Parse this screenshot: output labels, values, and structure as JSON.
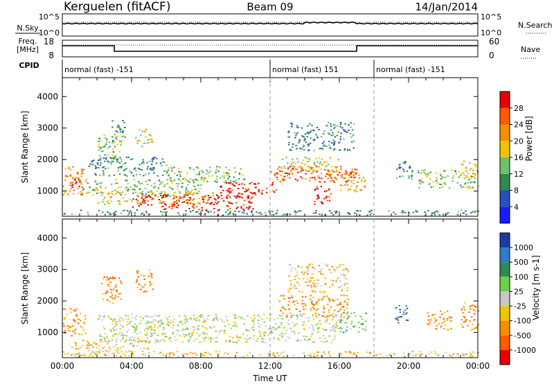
{
  "header": {
    "title": "Kerguelen (fitACF)",
    "beam": "Beam 09",
    "date": "14/Jan/2014"
  },
  "nsky_panel": {
    "left_label": "N.Sky",
    "right_label": "N.Search",
    "left_ticks": [
      "10^5",
      "10^0"
    ],
    "right_ticks": [
      "10^5",
      "10^0"
    ]
  },
  "freq_panel": {
    "left_label_1": "Freq.",
    "left_label_2": "[MHz]",
    "right_label": "Nave",
    "left_ticks": [
      "18",
      "8"
    ],
    "right_ticks": [
      "60",
      "0"
    ],
    "freq_steps": [
      {
        "from": 0,
        "to": 3,
        "level": "high"
      },
      {
        "from": 3,
        "to": 17,
        "level": "low"
      },
      {
        "from": 17,
        "to": 24,
        "level": "high"
      }
    ]
  },
  "cpid": {
    "label": "CPID",
    "segments": [
      {
        "start_hour": 0,
        "text": "normal (fast) -151"
      },
      {
        "start_hour": 12,
        "text": "normal (fast) 151"
      },
      {
        "start_hour": 18,
        "text": "normal (fast) -151"
      }
    ]
  },
  "chart_data": [
    {
      "type": "heatmap",
      "panel": "power",
      "ylabel": "Slant Range [km]",
      "ylim": [
        200,
        4600
      ],
      "yticks": [
        1000,
        2000,
        3000,
        4000
      ],
      "xlim": [
        0,
        24
      ],
      "colorbar_label": "Power [dB]",
      "colorbar_ticks": [
        4,
        8,
        12,
        16,
        20,
        24,
        28
      ],
      "colorbar_colors": [
        "#1a1aff",
        "#2a4fb8",
        "#2e8a52",
        "#6fbf6f",
        "#f2c500",
        "#f58f00",
        "#ff5a00",
        "#e60000"
      ],
      "regions": [
        {
          "t": [
            0.0,
            12.0
          ],
          "r": [
            250,
            420
          ],
          "level": 2
        },
        {
          "t": [
            12.0,
            24.0
          ],
          "r": [
            250,
            420
          ],
          "level": 2
        },
        {
          "t": [
            0.0,
            1.2
          ],
          "r": [
            900,
            1800
          ],
          "level": 5
        },
        {
          "t": [
            0.4,
            1.0
          ],
          "r": [
            1100,
            1500
          ],
          "level": 7
        },
        {
          "t": [
            2.0,
            3.5
          ],
          "r": [
            1900,
            2800
          ],
          "level": 3
        },
        {
          "t": [
            2.8,
            3.6
          ],
          "r": [
            2600,
            3300
          ],
          "level": 2
        },
        {
          "t": [
            4.2,
            5.2
          ],
          "r": [
            2400,
            3000
          ],
          "level": 4
        },
        {
          "t": [
            1.5,
            6.0
          ],
          "r": [
            1500,
            2100
          ],
          "level": 2
        },
        {
          "t": [
            1.0,
            8.0
          ],
          "r": [
            900,
            1400
          ],
          "level": 3
        },
        {
          "t": [
            2.0,
            9.0
          ],
          "r": [
            600,
            1000
          ],
          "level": 4
        },
        {
          "t": [
            4.0,
            11.0
          ],
          "r": [
            400,
            900
          ],
          "level": 7
        },
        {
          "t": [
            6.0,
            10.5
          ],
          "r": [
            1300,
            1800
          ],
          "level": 3
        },
        {
          "t": [
            9.0,
            12.5
          ],
          "r": [
            900,
            1300
          ],
          "level": 7
        },
        {
          "t": [
            12.0,
            17.0
          ],
          "r": [
            1300,
            1800
          ],
          "level": 6
        },
        {
          "t": [
            12.5,
            16.0
          ],
          "r": [
            1600,
            2100
          ],
          "level": 4
        },
        {
          "t": [
            13.0,
            16.8
          ],
          "r": [
            2300,
            3200
          ],
          "level": 2
        },
        {
          "t": [
            14.5,
            15.5
          ],
          "r": [
            600,
            1200
          ],
          "level": 7
        },
        {
          "t": [
            16.0,
            17.5
          ],
          "r": [
            1000,
            1600
          ],
          "level": 5
        },
        {
          "t": [
            19.2,
            20.2
          ],
          "r": [
            1400,
            2000
          ],
          "level": 2
        },
        {
          "t": [
            20.5,
            24.0
          ],
          "r": [
            1100,
            1700
          ],
          "level": 3
        },
        {
          "t": [
            23.0,
            24.0
          ],
          "r": [
            1400,
            2000
          ],
          "level": 4
        }
      ]
    },
    {
      "type": "heatmap",
      "panel": "velocity",
      "ylabel": "Slant Range [km]",
      "xlabel": "Time UT",
      "ylim": [
        200,
        4600
      ],
      "yticks": [
        1000,
        2000,
        3000,
        4000
      ],
      "xlim": [
        0,
        24
      ],
      "xticks": [
        "00:00",
        "04:00",
        "08:00",
        "12:00",
        "16:00",
        "20:00",
        "00:00"
      ],
      "colorbar_label": "Velocity [m s-1]",
      "colorbar_ticks": [
        1000,
        500,
        100,
        25,
        -25,
        -100,
        -500,
        -1000
      ],
      "colorbar_colors": [
        "#1a3aa8",
        "#2e7dc9",
        "#2e8a52",
        "#6fcf4a",
        "#c8c8c8",
        "#f2c500",
        "#f58f00",
        "#ff5a00",
        "#e60000"
      ],
      "regions": [
        {
          "t": [
            0.0,
            24.0
          ],
          "r": [
            250,
            420
          ],
          "level": 5
        },
        {
          "t": [
            0.0,
            1.3
          ],
          "r": [
            900,
            1800
          ],
          "level": 6
        },
        {
          "t": [
            2.2,
            3.4
          ],
          "r": [
            1900,
            2800
          ],
          "level": 6
        },
        {
          "t": [
            4.2,
            5.2
          ],
          "r": [
            2300,
            3000
          ],
          "level": 6
        },
        {
          "t": [
            2.0,
            16.0
          ],
          "r": [
            700,
            1600
          ],
          "level": 4
        },
        {
          "t": [
            0.5,
            5.0
          ],
          "r": [
            400,
            800
          ],
          "level": 5
        },
        {
          "t": [
            12.5,
            16.5
          ],
          "r": [
            1500,
            2200
          ],
          "level": 6
        },
        {
          "t": [
            13.0,
            16.5
          ],
          "r": [
            2300,
            3200
          ],
          "level": 5
        },
        {
          "t": [
            16.0,
            17.5
          ],
          "r": [
            1000,
            1700
          ],
          "level": 3
        },
        {
          "t": [
            19.2,
            20.0
          ],
          "r": [
            1300,
            1900
          ],
          "level": 1
        },
        {
          "t": [
            21.0,
            22.5
          ],
          "r": [
            1100,
            1700
          ],
          "level": 6
        },
        {
          "t": [
            23.0,
            24.0
          ],
          "r": [
            1100,
            2000
          ],
          "level": 6
        }
      ]
    }
  ]
}
